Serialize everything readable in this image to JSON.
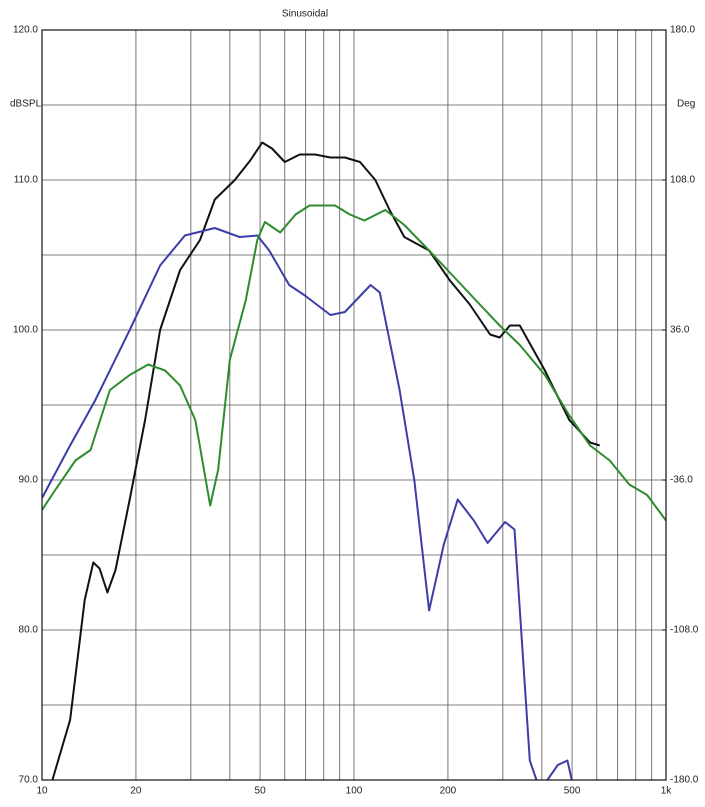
{
  "chart_data": {
    "type": "line",
    "title": "Sinusoidal",
    "ylabel": "dBSPL",
    "y2label": "Deg",
    "xscale": "log",
    "grid": true,
    "xlim": [
      10,
      1000
    ],
    "xticks": [
      10,
      20,
      50,
      100,
      200,
      500,
      {
        "value": 1000,
        "label": "1k"
      }
    ],
    "xminor_ticks": [
      30,
      40,
      60,
      70,
      80,
      90,
      300,
      400,
      600,
      700,
      800,
      900
    ],
    "ylim": [
      70,
      120
    ],
    "yticks": [
      {
        "value": 70,
        "label": "70.0"
      },
      {
        "value": 80,
        "label": "80.0"
      },
      {
        "value": 90,
        "label": "90.0"
      },
      {
        "value": 100,
        "label": "100.0"
      },
      {
        "value": 110,
        "label": "110.0"
      },
      {
        "value": 120,
        "label": "120.0"
      }
    ],
    "yminor_ticks": [
      75,
      85,
      95,
      105,
      115
    ],
    "y2lim": [
      -180,
      180
    ],
    "y2ticks": [
      {
        "value": -180,
        "label": "-180.0"
      },
      {
        "value": -108,
        "label": "-108.0"
      },
      {
        "value": -36,
        "label": "-36.0"
      },
      {
        "value": 36,
        "label": "36.0"
      },
      {
        "value": 108,
        "label": "108.0"
      },
      {
        "value": 180,
        "label": "180.0"
      }
    ],
    "series": [
      {
        "color": "#111111",
        "x": [
          10.8,
          12.3,
          13.7,
          14.6,
          15.3,
          16.2,
          17.2,
          19.1,
          21.4,
          23.9,
          27.7,
          32.1,
          35.8,
          41.5,
          46.5,
          50.8,
          54.6,
          60,
          67,
          75,
          84,
          93.5,
          104.5,
          117,
          130,
          145,
          174,
          203,
          235,
          273,
          293,
          316,
          340,
          409,
          490,
          571,
          613
        ],
        "values": [
          70,
          74,
          82,
          84.5,
          84.1,
          82.5,
          84,
          88.7,
          94,
          100,
          104,
          106,
          108.7,
          110,
          111.3,
          112.5,
          112.1,
          111.2,
          111.7,
          111.7,
          111.5,
          111.5,
          111.2,
          110,
          108,
          106.2,
          105.3,
          103.3,
          101.7,
          99.7,
          99.5,
          100.3,
          100.3,
          97.3,
          94,
          92.5,
          92.3
        ]
      },
      {
        "color": "#3d3da8",
        "x": [
          10,
          12.3,
          14.8,
          19.1,
          23.9,
          28.7,
          35.8,
          43,
          49,
          53.5,
          62,
          69.6,
          84,
          93.5,
          113,
          121,
          140,
          156,
          174,
          194,
          215,
          242,
          268,
          305,
          327,
          366,
          395,
          450,
          483,
          508
        ],
        "values": [
          88.8,
          92.3,
          95.3,
          100,
          104.3,
          106.3,
          106.8,
          106.2,
          106.3,
          105.3,
          103,
          102.3,
          101,
          101.2,
          103,
          102.5,
          96,
          90,
          81.3,
          85.7,
          88.7,
          87.3,
          85.8,
          87.2,
          86.7,
          71.3,
          69.3,
          71,
          71.3,
          69.3
        ]
      },
      {
        "color": "#2e8b2e",
        "x": [
          10,
          11,
          12.8,
          14.3,
          16.5,
          19.1,
          21.9,
          24.8,
          27.7,
          31,
          34.6,
          36.7,
          40,
          45,
          49,
          51.8,
          58,
          65,
          72,
          87,
          97,
          108,
          126,
          145,
          174,
          210,
          253,
          293,
          340,
          409,
          490,
          571,
          660,
          763,
          870,
          1000
        ],
        "values": [
          88,
          89.3,
          91.3,
          92,
          96,
          97,
          97.7,
          97.3,
          96.3,
          94,
          88.3,
          90.7,
          98,
          102,
          106,
          107.2,
          106.5,
          107.7,
          108.3,
          108.3,
          107.7,
          107.3,
          108,
          107,
          105.3,
          103.5,
          101.7,
          100.3,
          99,
          97,
          94.3,
          92.3,
          91.3,
          89.7,
          89,
          87.3
        ]
      }
    ]
  }
}
